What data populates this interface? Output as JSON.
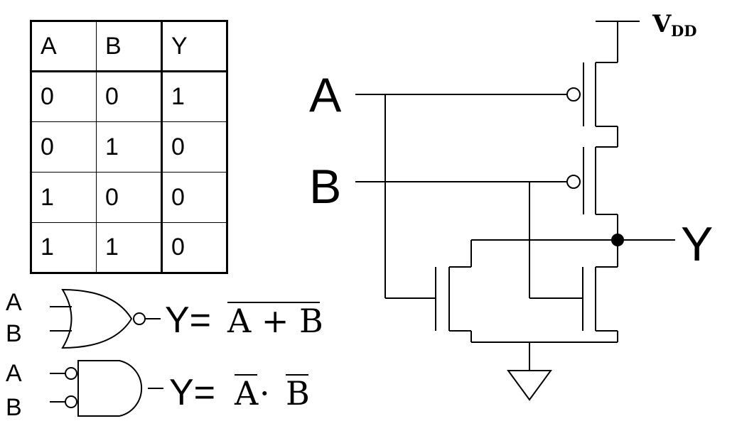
{
  "truth_table": {
    "headers": [
      "A",
      "B",
      "Y"
    ],
    "rows": [
      [
        "0",
        "0",
        "1"
      ],
      [
        "0",
        "1",
        "0"
      ],
      [
        "1",
        "0",
        "0"
      ],
      [
        "1",
        "1",
        "0"
      ]
    ]
  },
  "schematic": {
    "vdd_label": "V",
    "vdd_subscript": "DD",
    "input_a_label": "A",
    "input_b_label": "B",
    "output_label": "Y"
  },
  "nor_gate": {
    "input_a_label": "A",
    "input_b_label": "B",
    "eq_lhs": "Y=",
    "eq_rhs": "A + B"
  },
  "nand_equiv": {
    "input_a_label": "A",
    "input_b_label": "B",
    "eq_lhs": "Y=",
    "eq_a": "A",
    "eq_dot": "·",
    "eq_b": "B"
  }
}
